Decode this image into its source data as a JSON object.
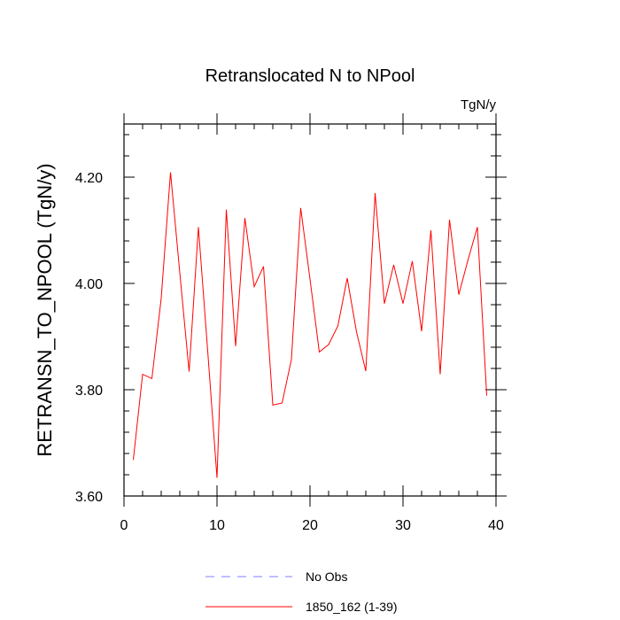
{
  "chart_data": {
    "type": "line",
    "title": "Retranslocated N to NPool",
    "units": "TgN/y",
    "xlabel": "",
    "ylabel": "RETRANSN_TO_NPOOL  (TgN/y)",
    "xlim": [
      0,
      40
    ],
    "ylim": [
      3.6,
      4.3
    ],
    "xticks": [
      0,
      10,
      20,
      30,
      40
    ],
    "xtick_labels": [
      "0",
      "10",
      "20",
      "30",
      "40"
    ],
    "yticks": [
      3.6,
      3.8,
      4.0,
      4.2
    ],
    "ytick_labels": [
      "3.60",
      "3.80",
      "4.00",
      "4.20"
    ],
    "series": [
      {
        "name": "1850_162 (1-39)",
        "color": "#ff0000",
        "style": "solid",
        "x": [
          1,
          2,
          3,
          4,
          5,
          6,
          7,
          8,
          9,
          10,
          11,
          12,
          13,
          14,
          15,
          16,
          17,
          18,
          19,
          20,
          21,
          22,
          23,
          24,
          25,
          26,
          27,
          28,
          29,
          30,
          31,
          32,
          33,
          34,
          35,
          36,
          37,
          38,
          39
        ],
        "values": [
          3.668,
          3.829,
          3.821,
          3.972,
          4.209,
          4.02,
          3.834,
          4.106,
          3.873,
          3.634,
          4.139,
          3.882,
          4.123,
          3.994,
          4.032,
          3.771,
          3.775,
          3.857,
          4.142,
          4.008,
          3.871,
          3.885,
          3.92,
          4.01,
          3.909,
          3.835,
          4.17,
          3.962,
          4.035,
          3.962,
          4.042,
          3.91,
          4.1,
          3.829,
          4.12,
          3.979,
          4.045,
          4.106,
          3.789
        ]
      }
    ],
    "legend": [
      {
        "label": "No Obs",
        "color": "#7f7fff",
        "style": "dashed"
      },
      {
        "label": "1850_162 (1-39)",
        "color": "#ff0000",
        "style": "solid"
      }
    ]
  }
}
